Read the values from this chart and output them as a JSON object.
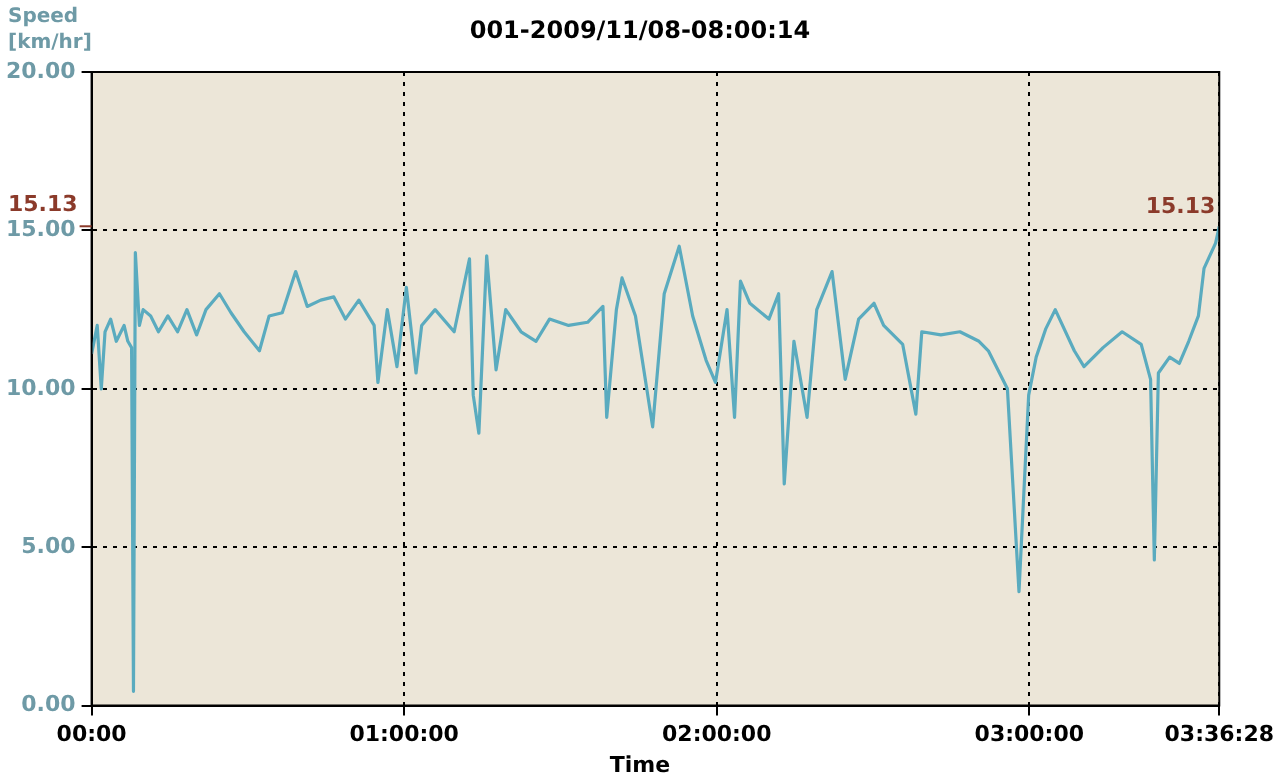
{
  "chart_data": {
    "type": "line",
    "title": "001-2009/11/08-08:00:14",
    "xlabel": "Time",
    "ylabel": "Speed [km/hr]",
    "xlim": [
      0,
      3.6078
    ],
    "xticks": [
      {
        "value": 0,
        "label": "00:00"
      },
      {
        "value": 1,
        "label": "01:00:00"
      },
      {
        "value": 2,
        "label": "02:00:00"
      },
      {
        "value": 3,
        "label": "03:00:00"
      },
      {
        "value": 3.6078,
        "label": "03:36:28"
      }
    ],
    "ylim": [
      0,
      20
    ],
    "yticks": [
      {
        "value": 0,
        "label": "0.00"
      },
      {
        "value": 5,
        "label": "5.00"
      },
      {
        "value": 10,
        "label": "10.00"
      },
      {
        "value": 15,
        "label": "15.00"
      },
      {
        "value": 20,
        "label": "20.00"
      }
    ],
    "grid": true,
    "marker": "none",
    "line_style": "solid",
    "annotations": [
      "15.13",
      {
        "text": "15.13",
        "x": 3.6078,
        "y": 15.13
      }
    ],
    "series": [
      {
        "color": "#5aabbf",
        "x": [
          0,
          0.018,
          0.031,
          0.043,
          0.061,
          0.079,
          0.104,
          0.116,
          0.128,
          0.134,
          0.14,
          0.153,
          0.165,
          0.189,
          0.214,
          0.244,
          0.275,
          0.305,
          0.336,
          0.366,
          0.409,
          0.446,
          0.488,
          0.537,
          0.568,
          0.61,
          0.653,
          0.69,
          0.733,
          0.775,
          0.812,
          0.855,
          0.904,
          0.916,
          0.946,
          0.977,
          1.007,
          1.038,
          1.056,
          1.099,
          1.16,
          1.209,
          1.221,
          1.239,
          1.264,
          1.294,
          1.325,
          1.374,
          1.422,
          1.465,
          1.526,
          1.587,
          1.636,
          1.648,
          1.679,
          1.697,
          1.74,
          1.795,
          1.832,
          1.88,
          1.923,
          1.966,
          1.996,
          2.033,
          2.057,
          2.076,
          2.106,
          2.167,
          2.198,
          2.216,
          2.247,
          2.289,
          2.32,
          2.369,
          2.411,
          2.454,
          2.503,
          2.534,
          2.595,
          2.637,
          2.656,
          2.717,
          2.778,
          2.839,
          2.869,
          2.93,
          2.967,
          2.998,
          3.022,
          3.053,
          3.083,
          3.144,
          3.175,
          3.236,
          3.297,
          3.358,
          3.388,
          3.4,
          3.413,
          3.449,
          3.48,
          3.51,
          3.541,
          3.559,
          3.596,
          3.6078
        ],
        "values": [
          11.1,
          12.0,
          10.0,
          11.8,
          12.2,
          11.5,
          12.0,
          11.5,
          11.3,
          0.45,
          14.3,
          12.0,
          12.5,
          12.3,
          11.8,
          12.3,
          11.8,
          12.5,
          11.7,
          12.5,
          13.0,
          12.4,
          11.8,
          11.2,
          12.3,
          12.4,
          13.7,
          12.6,
          12.8,
          12.9,
          12.2,
          12.8,
          12.0,
          10.2,
          12.5,
          10.7,
          13.2,
          10.5,
          12.0,
          12.5,
          11.8,
          14.1,
          9.8,
          8.6,
          14.2,
          10.6,
          12.5,
          11.8,
          11.5,
          12.2,
          12.0,
          12.1,
          12.6,
          9.1,
          12.5,
          13.5,
          12.3,
          8.8,
          13.0,
          14.5,
          12.3,
          10.9,
          10.2,
          12.5,
          9.1,
          13.4,
          12.7,
          12.2,
          13.0,
          7.0,
          11.5,
          9.1,
          12.5,
          13.7,
          10.3,
          12.2,
          12.7,
          12.0,
          11.4,
          9.2,
          11.8,
          11.7,
          11.8,
          11.5,
          11.2,
          10.0,
          3.6,
          9.8,
          11.0,
          11.9,
          12.5,
          11.2,
          10.7,
          11.3,
          11.8,
          11.4,
          10.3,
          4.6,
          10.5,
          11.0,
          10.8,
          11.5,
          12.3,
          13.8,
          14.6,
          15.13
        ]
      }
    ]
  }
}
